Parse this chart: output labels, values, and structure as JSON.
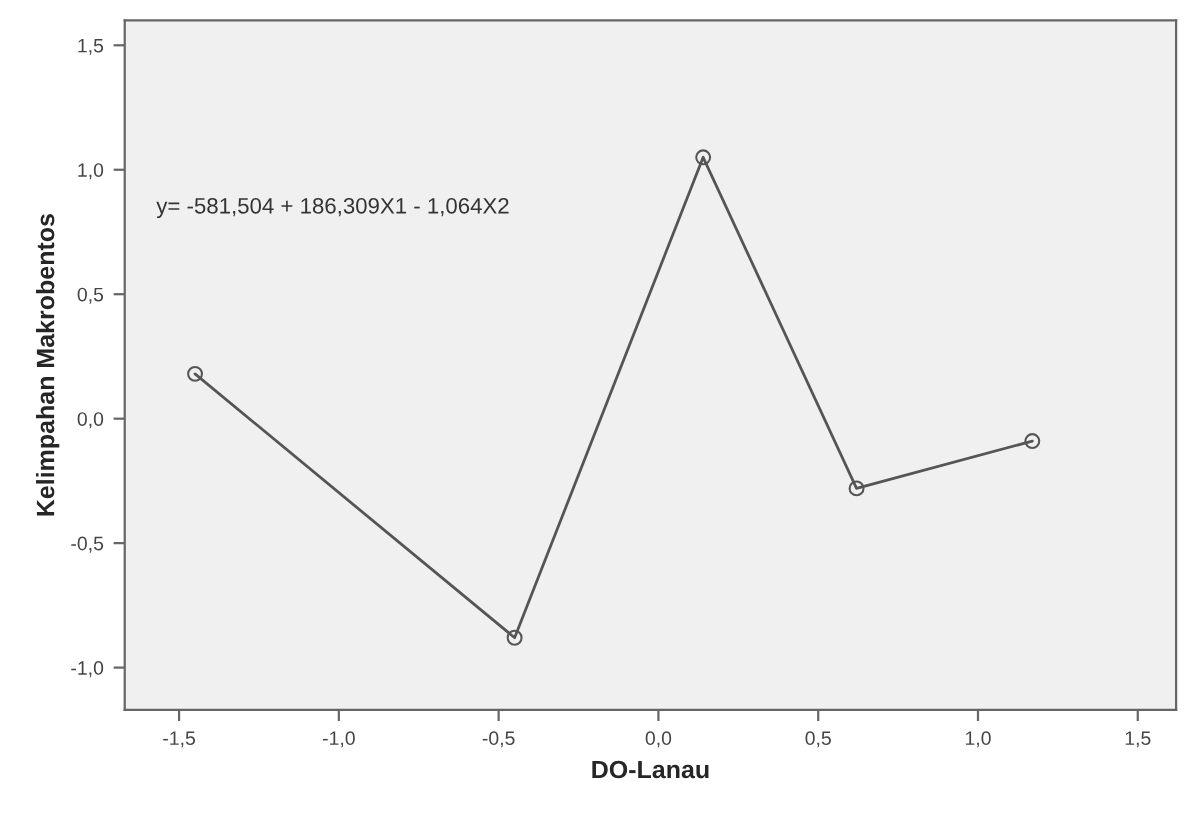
{
  "chart_data": {
    "type": "line",
    "xlabel": "DO-Lanau",
    "ylabel": "Kelimpahan Makrobentos",
    "x": [
      -1.45,
      -0.45,
      0.14,
      0.62,
      1.17
    ],
    "series": [
      {
        "color": "#555555",
        "values": [
          0.18,
          -0.88,
          1.05,
          -0.28,
          -0.09
        ]
      }
    ],
    "marker": "circle",
    "line_style": "solid",
    "grid": false,
    "legend": false,
    "xlim": [
      -1.67,
      1.62
    ],
    "ylim": [
      -1.17,
      1.6
    ],
    "xticks": [
      {
        "value": -1.5,
        "label": "-1,5"
      },
      {
        "value": -1.0,
        "label": "-1,0"
      },
      {
        "value": -0.5,
        "label": "-0,5"
      },
      {
        "value": 0.0,
        "label": "0,0"
      },
      {
        "value": 0.5,
        "label": "0,5"
      },
      {
        "value": 1.0,
        "label": "1,0"
      },
      {
        "value": 1.5,
        "label": "1,5"
      }
    ],
    "yticks": [
      {
        "value": -1.0,
        "label": "-1,0"
      },
      {
        "value": -0.5,
        "label": "-0,5"
      },
      {
        "value": 0.0,
        "label": "0,0"
      },
      {
        "value": 0.5,
        "label": "0,5"
      },
      {
        "value": 1.0,
        "label": "1,0"
      },
      {
        "value": 1.5,
        "label": "1,5"
      }
    ],
    "annotations": [
      "y= -581,504 + 186,309X1 - 1,064X2"
    ]
  }
}
